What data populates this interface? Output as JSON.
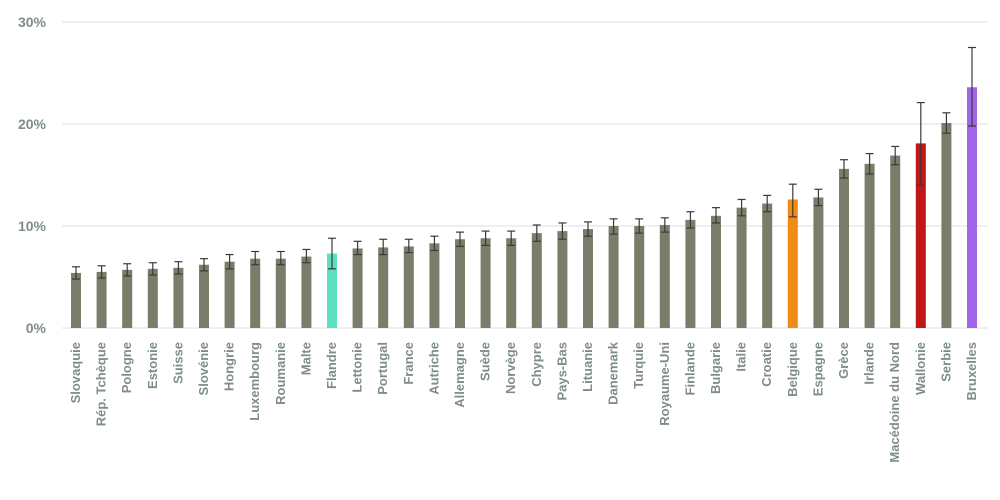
{
  "chart_data": {
    "type": "bar",
    "title": "",
    "xlabel": "",
    "ylabel": "",
    "ylim": [
      0,
      30
    ],
    "yticks": [
      0,
      10,
      20,
      30
    ],
    "ytick_labels": [
      "0%",
      "10%",
      "20%",
      "30%"
    ],
    "grid": true,
    "default_color": "#7b7c69",
    "categories": [
      "Slovaquie",
      "Rép. Tchèque",
      "Pologne",
      "Estonie",
      "Suisse",
      "Slovénie",
      "Hongrie",
      "Luxembourg",
      "Roumanie",
      "Malte",
      "Flandre",
      "Lettonie",
      "Portugal",
      "France",
      "Autriche",
      "Allemagne",
      "Suède",
      "Norvège",
      "Chypre",
      "Pays-Bas",
      "Lituanie",
      "Danemark",
      "Turquie",
      "Royaume-Uni",
      "Finlande",
      "Bulgarie",
      "Italie",
      "Croatie",
      "Belgique",
      "Espagne",
      "Grèce",
      "Irlande",
      "Macédoine du Nord",
      "Wallonie",
      "Serbie",
      "Bruxelles"
    ],
    "values": [
      5.4,
      5.5,
      5.7,
      5.8,
      5.9,
      6.2,
      6.5,
      6.8,
      6.8,
      7.0,
      7.3,
      7.8,
      7.9,
      8.0,
      8.3,
      8.7,
      8.8,
      8.8,
      9.3,
      9.5,
      9.7,
      10.0,
      10.0,
      10.1,
      10.6,
      11.0,
      11.8,
      12.2,
      12.6,
      12.8,
      15.6,
      16.1,
      16.9,
      18.1,
      20.1,
      23.6
    ],
    "err_low": [
      4.8,
      4.9,
      5.1,
      5.2,
      5.3,
      5.6,
      5.8,
      6.2,
      6.2,
      6.4,
      5.8,
      7.2,
      7.2,
      7.4,
      7.6,
      8.0,
      8.1,
      8.1,
      8.5,
      8.7,
      9.0,
      9.2,
      9.3,
      9.4,
      9.8,
      10.3,
      11.0,
      11.4,
      10.9,
      12.0,
      14.7,
      15.1,
      16.0,
      14.0,
      19.1,
      19.8
    ],
    "err_high": [
      6.0,
      6.1,
      6.3,
      6.4,
      6.5,
      6.8,
      7.2,
      7.5,
      7.5,
      7.7,
      8.8,
      8.5,
      8.7,
      8.7,
      9.0,
      9.4,
      9.5,
      9.5,
      10.1,
      10.3,
      10.4,
      10.7,
      10.7,
      10.8,
      11.4,
      11.8,
      12.6,
      13.0,
      14.1,
      13.6,
      16.5,
      17.1,
      17.8,
      22.1,
      21.1,
      27.5
    ],
    "highlights": [
      {
        "category": "Flandre",
        "color": "#5ee0c0"
      },
      {
        "category": "Belgique",
        "color": "#f08c14"
      },
      {
        "category": "Wallonie",
        "color": "#c01818"
      },
      {
        "category": "Bruxelles",
        "color": "#a064e6"
      }
    ]
  }
}
